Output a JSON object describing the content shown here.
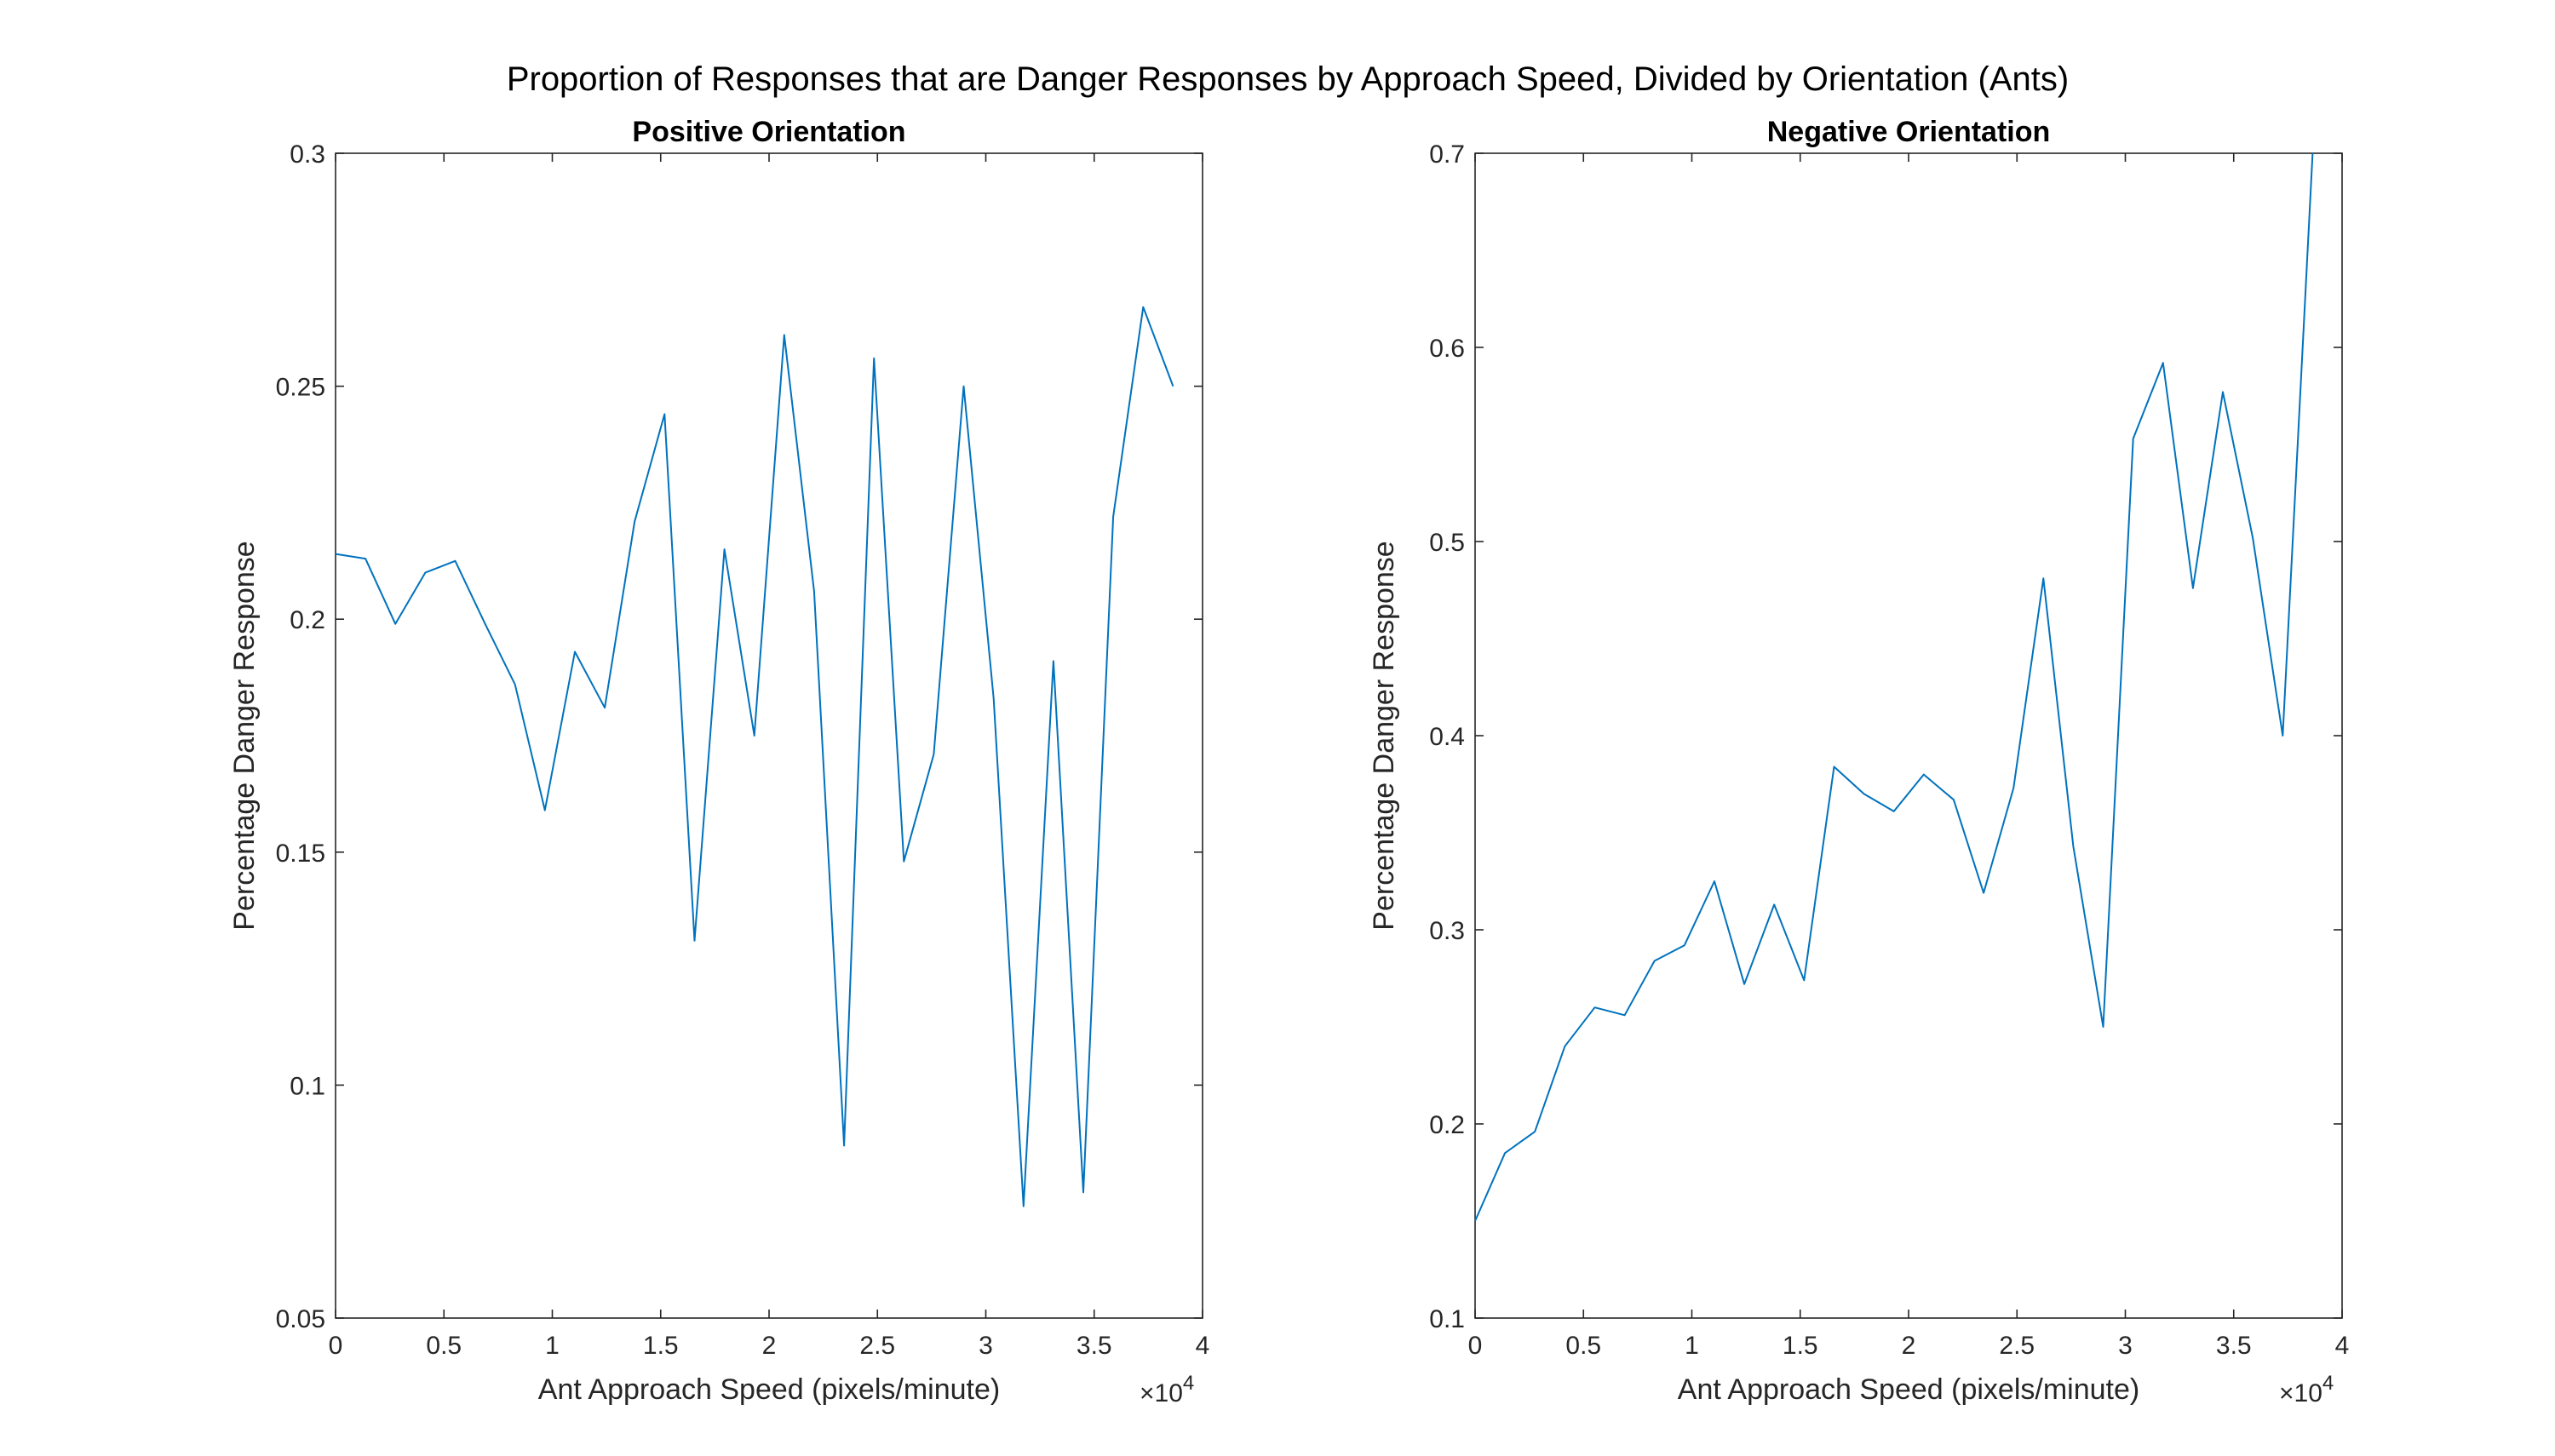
{
  "figure": {
    "suptitle": "Proportion of Responses that are Danger Responses by Approach Speed, Divided by Orientation (Ants)"
  },
  "chart_data": [
    {
      "type": "line",
      "title": "Positive Orientation",
      "xlabel": "Ant Approach Speed (pixels/minute)",
      "ylabel": "Percentage Danger Response",
      "xlim": [
        0,
        40000
      ],
      "ylim": [
        0.05,
        0.3
      ],
      "xticks": [
        0,
        5000,
        10000,
        15000,
        20000,
        25000,
        30000,
        35000,
        40000
      ],
      "xtick_labels": [
        "0",
        "0.5",
        "1",
        "1.5",
        "2",
        "2.5",
        "3",
        "3.5",
        "4"
      ],
      "yticks": [
        0.05,
        0.1,
        0.15,
        0.2,
        0.25,
        0.3
      ],
      "ytick_labels": [
        "0.05",
        "0.1",
        "0.15",
        "0.2",
        "0.25",
        "0.3"
      ],
      "x_exponent_label": "×10^4",
      "grid": false,
      "color": "#0072BD",
      "x": [
        0,
        1380,
        2760,
        4140,
        5520,
        6900,
        8280,
        9660,
        11040,
        12420,
        13800,
        15180,
        16560,
        17940,
        19320,
        20700,
        22080,
        23460,
        24840,
        26220,
        27600,
        28980,
        30360,
        31740,
        33120,
        34500,
        35880,
        37260,
        38640
      ],
      "y": [
        0.214,
        0.213,
        0.199,
        0.21,
        0.2125,
        0.199,
        0.186,
        0.159,
        0.193,
        0.181,
        0.221,
        0.244,
        0.131,
        0.215,
        0.175,
        0.261,
        0.206,
        0.087,
        0.256,
        0.148,
        0.171,
        0.25,
        0.183,
        0.074,
        0.191,
        0.077,
        0.222,
        0.267,
        0.25
      ]
    },
    {
      "type": "line",
      "title": "Negative Orientation",
      "xlabel": "Ant Approach Speed (pixels/minute)",
      "ylabel": "Percentage Danger Response",
      "xlim": [
        0,
        40000
      ],
      "ylim": [
        0.1,
        0.7
      ],
      "xticks": [
        0,
        5000,
        10000,
        15000,
        20000,
        25000,
        30000,
        35000,
        40000
      ],
      "xtick_labels": [
        "0",
        "0.5",
        "1",
        "1.5",
        "2",
        "2.5",
        "3",
        "3.5",
        "4"
      ],
      "yticks": [
        0.1,
        0.2,
        0.3,
        0.4,
        0.5,
        0.6,
        0.7
      ],
      "ytick_labels": [
        "0.1",
        "0.2",
        "0.3",
        "0.4",
        "0.5",
        "0.6",
        "0.7"
      ],
      "x_exponent_label": "×10^4",
      "grid": false,
      "color": "#0072BD",
      "x": [
        0,
        1380,
        2760,
        4140,
        5520,
        6900,
        8280,
        9660,
        11040,
        12420,
        13800,
        15180,
        16560,
        17940,
        19320,
        20700,
        22080,
        23460,
        24840,
        26220,
        27600,
        28980,
        30360,
        31740,
        33120,
        34500,
        35880,
        37260,
        38640
      ],
      "y": [
        0.15,
        0.185,
        0.196,
        0.24,
        0.26,
        0.256,
        0.284,
        0.292,
        0.325,
        0.272,
        0.313,
        0.274,
        0.384,
        0.37,
        0.361,
        0.38,
        0.367,
        0.319,
        0.373,
        0.481,
        0.343,
        0.25,
        0.553,
        0.592,
        0.476,
        0.577,
        0.502,
        0.4,
        0.7
      ]
    }
  ]
}
